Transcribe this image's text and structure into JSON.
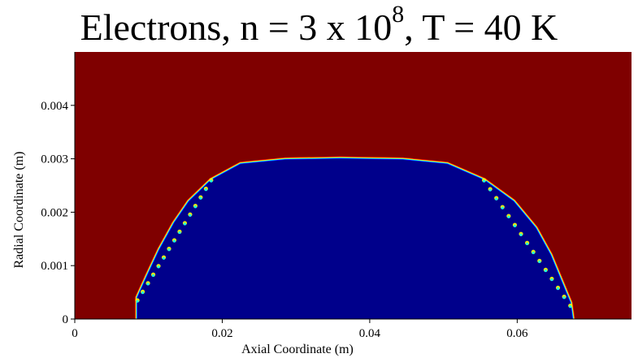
{
  "title": {
    "prefix": "Electrons, n = 3 x 10",
    "exponent": "8",
    "suffix": ", T = 40 K"
  },
  "colors": {
    "background_field": "#7f0000",
    "plasma_core": "#00008b",
    "edge_highlights": [
      "#0000ff",
      "#00ffff",
      "#ffff00",
      "#ff0000"
    ]
  },
  "chart_data": {
    "type": "heatmap",
    "title": "Electrons, n = 3 x 10^8, T = 40 K",
    "xlabel": "Axial Coordinate (m)",
    "ylabel": "Radial Coordinate (m)",
    "xlim": [
      0,
      0.0755
    ],
    "ylim": [
      0,
      0.005
    ],
    "x_ticks": [
      {
        "value": 0,
        "label": "0"
      },
      {
        "value": 0.02,
        "label": "0.02"
      },
      {
        "value": 0.04,
        "label": "0.04"
      },
      {
        "value": 0.06,
        "label": "0.06"
      }
    ],
    "y_ticks": [
      {
        "value": 0,
        "label": "0"
      },
      {
        "value": 0.001,
        "label": "0.001"
      },
      {
        "value": 0.002,
        "label": "0.002"
      },
      {
        "value": 0.003,
        "label": "0.003"
      },
      {
        "value": 0.004,
        "label": "0.004"
      }
    ],
    "grid": false,
    "colormap": "jet",
    "background_value": "high",
    "plasma_value": "low",
    "plasma_boundary": [
      {
        "x": 0.0085,
        "r": 0.0
      },
      {
        "x": 0.0085,
        "r": 0.0004
      },
      {
        "x": 0.0098,
        "r": 0.0008
      },
      {
        "x": 0.0115,
        "r": 0.0013
      },
      {
        "x": 0.0135,
        "r": 0.0018
      },
      {
        "x": 0.0155,
        "r": 0.0022
      },
      {
        "x": 0.0185,
        "r": 0.0026
      },
      {
        "x": 0.0225,
        "r": 0.0029
      },
      {
        "x": 0.0285,
        "r": 0.00298
      },
      {
        "x": 0.036,
        "r": 0.003
      },
      {
        "x": 0.0445,
        "r": 0.00298
      },
      {
        "x": 0.0505,
        "r": 0.0029
      },
      {
        "x": 0.0555,
        "r": 0.0026
      },
      {
        "x": 0.0595,
        "r": 0.0022
      },
      {
        "x": 0.0625,
        "r": 0.0017
      },
      {
        "x": 0.0645,
        "r": 0.0012
      },
      {
        "x": 0.066,
        "r": 0.0007
      },
      {
        "x": 0.0672,
        "r": 0.0003
      },
      {
        "x": 0.0675,
        "r": 0.0
      }
    ]
  }
}
